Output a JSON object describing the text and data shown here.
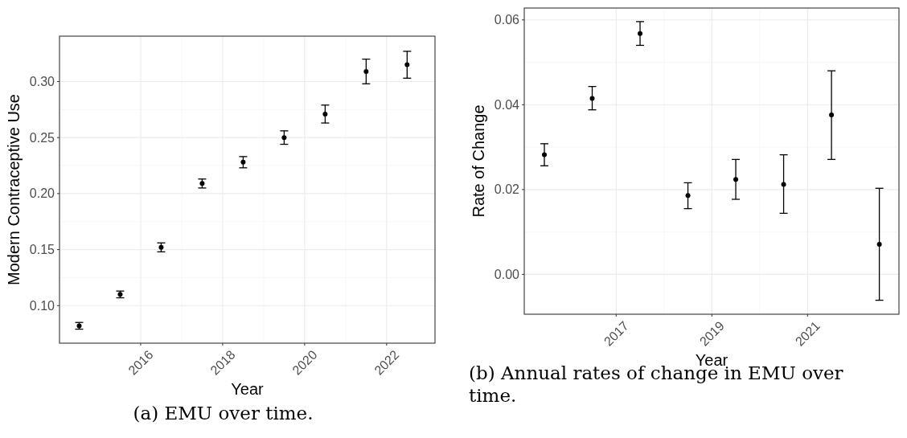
{
  "chart_data": [
    {
      "type": "scatter",
      "xlabel": "Year",
      "ylabel": "Modern Contraceptive Use",
      "annotations": [
        "(a) EMU over time."
      ],
      "x": [
        2014.5,
        2015.5,
        2016.5,
        2017.5,
        2018.5,
        2019.5,
        2020.5,
        2021.5,
        2022.5
      ],
      "values": [
        0.082,
        0.11,
        0.152,
        0.209,
        0.228,
        0.25,
        0.271,
        0.309,
        0.315
      ],
      "errors": [
        [
          0.079,
          0.085
        ],
        [
          0.107,
          0.113
        ],
        [
          0.148,
          0.156
        ],
        [
          0.205,
          0.213
        ],
        [
          0.223,
          0.233
        ],
        [
          0.244,
          0.256
        ],
        [
          0.263,
          0.279
        ],
        [
          0.298,
          0.32
        ],
        [
          0.303,
          0.327
        ]
      ],
      "color": "#000000",
      "marker": "circle",
      "xlim": [
        2014.02,
        2023.18
      ],
      "xticks": [
        2016,
        2018,
        2020,
        2022
      ],
      "ylim": [
        0.0665,
        0.3405
      ],
      "yticks": [
        {
          "value": 0.1,
          "label": "0.10"
        },
        {
          "value": 0.15,
          "label": "0.15"
        },
        {
          "value": 0.2,
          "label": "0.20"
        },
        {
          "value": 0.25,
          "label": "0.25"
        },
        {
          "value": 0.3,
          "label": "0.30"
        }
      ],
      "grid": true
    },
    {
      "type": "scatter",
      "xlabel": "Year",
      "ylabel": "Rate of Change",
      "annotations": [
        "(b) Annual rates of change in EMU over time."
      ],
      "x": [
        2015.5,
        2016.5,
        2017.5,
        2018.5,
        2019.5,
        2020.5,
        2021.5,
        2022.5
      ],
      "values": [
        0.0282,
        0.0415,
        0.0568,
        0.0186,
        0.0224,
        0.0212,
        0.0376,
        0.0071
      ],
      "errors": [
        [
          0.0256,
          0.0308
        ],
        [
          0.0388,
          0.0443
        ],
        [
          0.054,
          0.0596
        ],
        [
          0.0155,
          0.0216
        ],
        [
          0.0177,
          0.0271
        ],
        [
          0.0144,
          0.0282
        ],
        [
          0.0271,
          0.048
        ],
        [
          -0.0061,
          0.0203
        ]
      ],
      "color": "#000000",
      "marker": "circle",
      "xlim": [
        2015.08,
        2022.91
      ],
      "xticks": [
        2017,
        2019,
        2021
      ],
      "ylim": [
        -0.0094,
        0.0628
      ],
      "yticks": [
        {
          "value": 0,
          "label": "0.00"
        },
        {
          "value": 0.02,
          "label": "0.02"
        },
        {
          "value": 0.04,
          "label": "0.04"
        },
        {
          "value": 0.06,
          "label": "0.06"
        }
      ],
      "grid": true
    }
  ]
}
